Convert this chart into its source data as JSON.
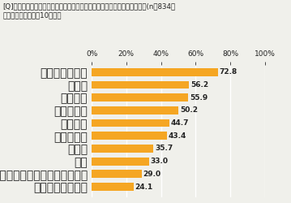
{
  "title_line1": "[Q]家で作る、作ったことのある、韓国料理のメニューを教えてください。(n＝834・",
  "title_line2": "複数回答のうち上位10項目）",
  "categories": [
    "チヂミ、ジョン",
    "ナムル",
    "ビビンバ",
    "チャプチェ",
    "プルコギ",
    "スンドゥブ",
    "チゲ類",
    "冷麺",
    "タッカルビ・チーズタッカルビ",
    "ヤンニョムチキン"
  ],
  "values": [
    72.8,
    56.2,
    55.9,
    50.2,
    44.7,
    43.4,
    35.7,
    33.0,
    29.0,
    24.1
  ],
  "bar_color": "#F5A623",
  "xlim": [
    0,
    100
  ],
  "xticks": [
    0,
    20,
    40,
    60,
    80,
    100
  ],
  "xticklabels": [
    "0%",
    "20%",
    "40%",
    "60%",
    "80%",
    "100%"
  ],
  "label_fontsize": 6.5,
  "value_fontsize": 6.5,
  "title_fontsize": 6.2,
  "background_color": "#f0f0eb"
}
